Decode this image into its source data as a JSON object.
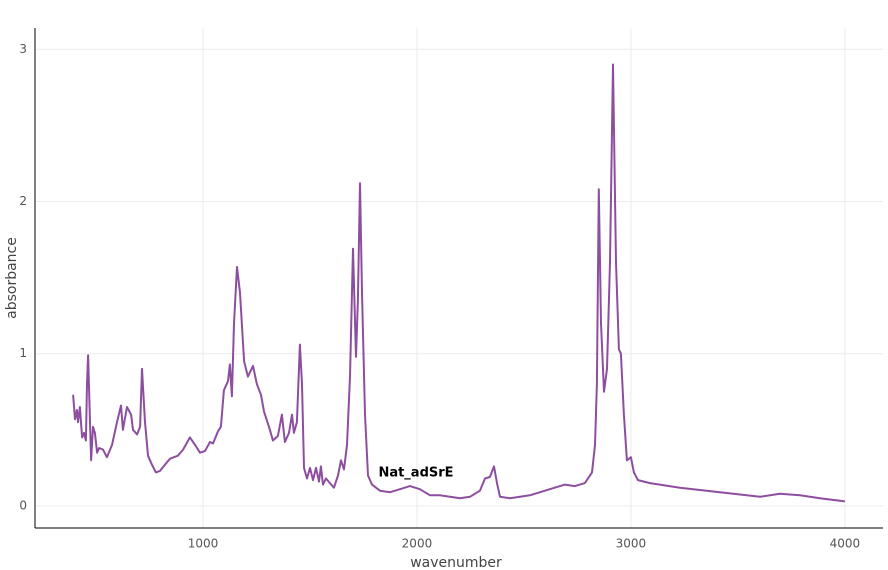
{
  "chart_data": {
    "type": "line",
    "xlabel": "wavenumber",
    "ylabel": "absorbance",
    "annotation": "Nat_adSrE",
    "xlim": [
      215,
      4178
    ],
    "ylim": [
      -0.145,
      3.14
    ],
    "xticks": [
      1000,
      2000,
      3000,
      4000
    ],
    "yticks": [
      0,
      1,
      2,
      3
    ],
    "grid": true,
    "series": [
      {
        "name": "Nat_adSrE",
        "color": "#8e4ea0",
        "x": [
          393,
          402,
          411,
          416,
          425,
          435,
          444,
          453,
          458,
          463,
          472,
          477,
          486,
          495,
          505,
          514,
          533,
          551,
          575,
          598,
          617,
          626,
          645,
          664,
          673,
          692,
          706,
          715,
          729,
          743,
          762,
          780,
          799,
          822,
          846,
          883,
          907,
          939,
          963,
          986,
          1009,
          1033,
          1047,
          1070,
          1084,
          1098,
          1117,
          1126,
          1135,
          1145,
          1159,
          1173,
          1192,
          1210,
          1234,
          1252,
          1271,
          1285,
          1313,
          1327,
          1350,
          1369,
          1383,
          1402,
          1416,
          1425,
          1439,
          1453,
          1463,
          1472,
          1486,
          1500,
          1514,
          1528,
          1542,
          1551,
          1561,
          1575,
          1593,
          1612,
          1631,
          1645,
          1659,
          1673,
          1687,
          1701,
          1715,
          1724,
          1734,
          1743,
          1757,
          1771,
          1790,
          1827,
          1874,
          1921,
          1967,
          2014,
          2061,
          2107,
          2154,
          2201,
          2248,
          2294,
          2318,
          2341,
          2360,
          2374,
          2388,
          2435,
          2528,
          2621,
          2692,
          2738,
          2785,
          2818,
          2832,
          2841,
          2850,
          2860,
          2874,
          2888,
          2902,
          2916,
          2930,
          2944,
          2953,
          2967,
          2981,
          3000,
          3014,
          3033,
          3089,
          3229,
          3416,
          3603,
          3696,
          3790,
          3883,
          4000
        ],
        "values": [
          0.73,
          0.57,
          0.63,
          0.55,
          0.65,
          0.45,
          0.48,
          0.43,
          0.8,
          0.99,
          0.55,
          0.3,
          0.52,
          0.48,
          0.35,
          0.38,
          0.37,
          0.32,
          0.4,
          0.55,
          0.66,
          0.5,
          0.65,
          0.6,
          0.5,
          0.47,
          0.52,
          0.9,
          0.55,
          0.33,
          0.27,
          0.22,
          0.23,
          0.27,
          0.31,
          0.33,
          0.37,
          0.45,
          0.4,
          0.35,
          0.36,
          0.42,
          0.41,
          0.49,
          0.52,
          0.76,
          0.82,
          0.93,
          0.72,
          1.2,
          1.57,
          1.4,
          0.95,
          0.85,
          0.92,
          0.8,
          0.73,
          0.62,
          0.5,
          0.43,
          0.46,
          0.6,
          0.42,
          0.48,
          0.6,
          0.48,
          0.55,
          1.06,
          0.8,
          0.25,
          0.18,
          0.25,
          0.17,
          0.25,
          0.16,
          0.26,
          0.14,
          0.18,
          0.15,
          0.12,
          0.2,
          0.3,
          0.24,
          0.4,
          0.85,
          1.69,
          0.98,
          1.35,
          2.12,
          1.4,
          0.6,
          0.2,
          0.14,
          0.1,
          0.09,
          0.11,
          0.13,
          0.11,
          0.07,
          0.07,
          0.06,
          0.05,
          0.06,
          0.1,
          0.18,
          0.19,
          0.26,
          0.15,
          0.06,
          0.05,
          0.07,
          0.11,
          0.14,
          0.13,
          0.15,
          0.22,
          0.4,
          0.8,
          2.08,
          1.2,
          0.75,
          0.9,
          1.6,
          2.9,
          1.6,
          1.03,
          1.0,
          0.6,
          0.3,
          0.32,
          0.22,
          0.17,
          0.15,
          0.12,
          0.09,
          0.06,
          0.08,
          0.07,
          0.05,
          0.03
        ]
      }
    ]
  }
}
